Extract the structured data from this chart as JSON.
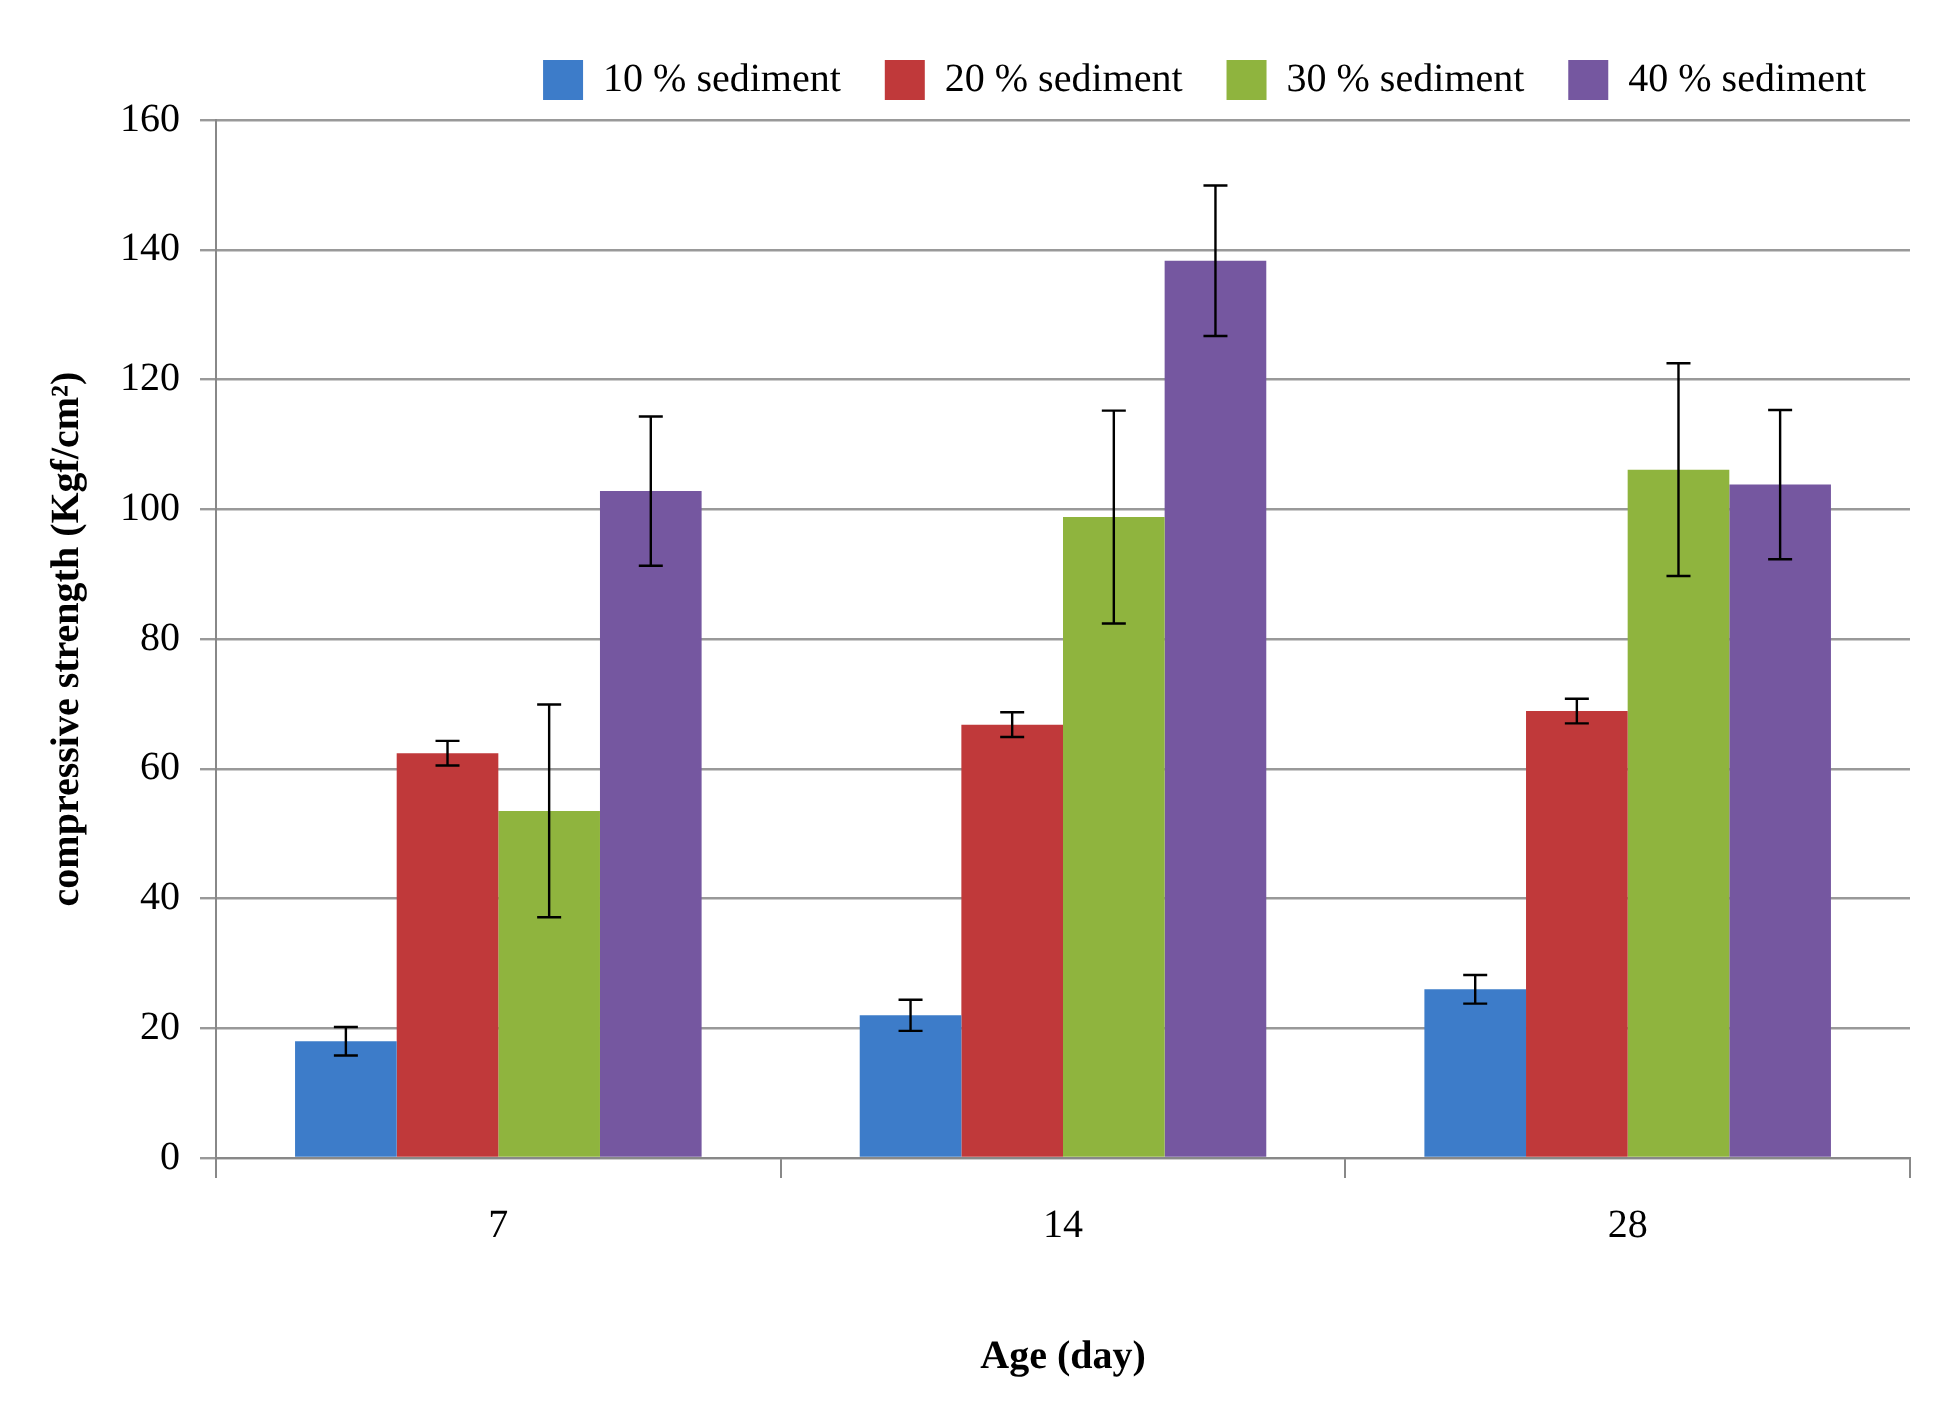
{
  "chart_data": {
    "type": "bar",
    "xlabel": "Age (day)",
    "ylabel": "compressive strength (Kgf/cm²)",
    "categories": [
      "7",
      "14",
      "28"
    ],
    "series": [
      {
        "name": "10 % sediment",
        "color": "#3d7cc9",
        "values": [
          18,
          22,
          26
        ],
        "errors": [
          2.2,
          2.4,
          2.2
        ]
      },
      {
        "name": "20 % sediment",
        "color": "#c0393a",
        "values": [
          62.4,
          66.8,
          68.9
        ],
        "errors": [
          1.9,
          1.9,
          1.9
        ]
      },
      {
        "name": "30 % sediment",
        "color": "#8fb43e",
        "values": [
          53.5,
          98.8,
          106.1
        ],
        "errors": [
          16.4,
          16.4,
          16.4
        ]
      },
      {
        "name": "40 % sediment",
        "color": "#7557a0",
        "values": [
          102.8,
          138.3,
          103.8
        ],
        "errors": [
          11.5,
          11.6,
          11.5
        ]
      }
    ],
    "ylim": [
      0,
      160
    ],
    "yticks": [
      0,
      20,
      40,
      60,
      80,
      100,
      120,
      140,
      160
    ],
    "grid": "y",
    "legend": "top right"
  }
}
